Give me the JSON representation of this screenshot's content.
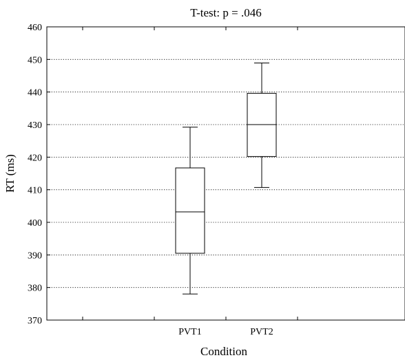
{
  "chart_data": {
    "type": "box",
    "title": "T-test: p = .046",
    "xlabel": "Condition",
    "ylabel": "RT (ms)",
    "ylim": [
      370,
      460
    ],
    "yticks": [
      "370",
      "380",
      "390",
      "400",
      "410",
      "420",
      "430",
      "440",
      "450",
      "460"
    ],
    "categories": [
      "PVT1",
      "PVT2"
    ],
    "grid": "horizontal dotted",
    "boxes": [
      {
        "category": "PVT1",
        "min": 378,
        "q1": 390.5,
        "median": 403.2,
        "q3": 416.7,
        "max": 429.2
      },
      {
        "category": "PVT2",
        "min": 410.7,
        "q1": 420.2,
        "median": 430,
        "q3": 439.6,
        "max": 448.9
      }
    ]
  }
}
